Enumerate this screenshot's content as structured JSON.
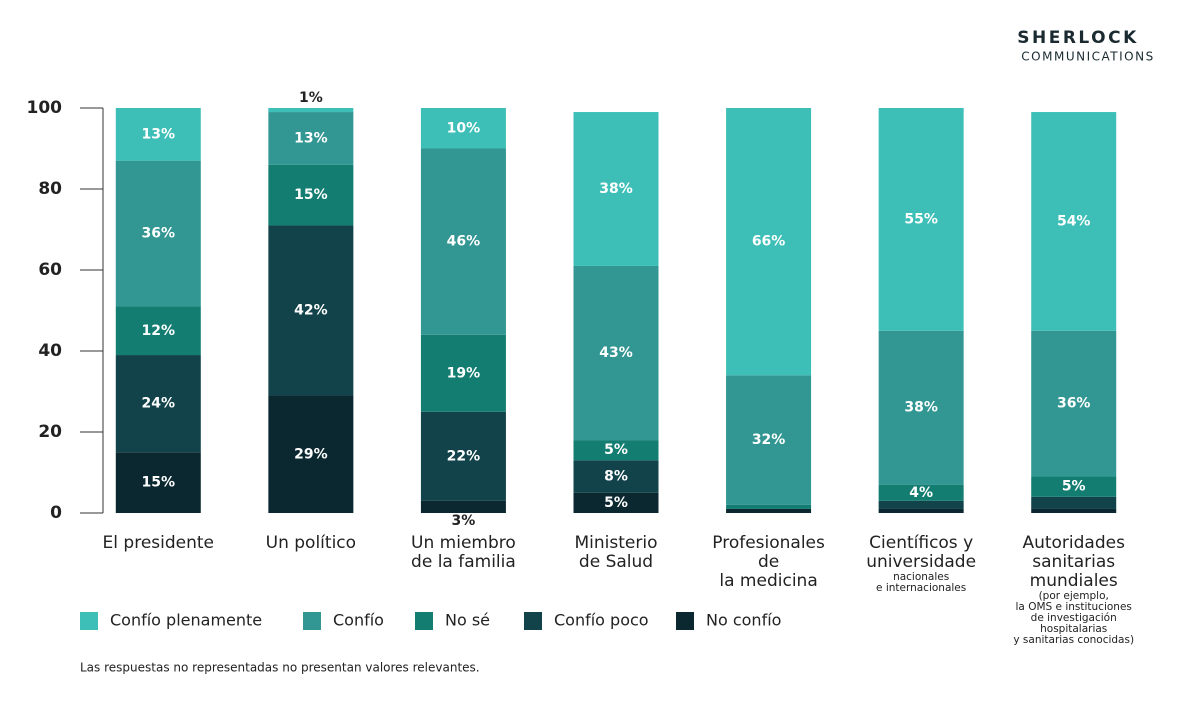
{
  "chart_data": {
    "type": "stacked_bar",
    "categories": [
      "El presidente",
      "Un político",
      "Un miembro de la familia",
      "Ministerio de Salud",
      "Profesionales de la medicina",
      "Científicos y universidade",
      "Autoridades sanitarias mundiales"
    ],
    "category_notes": [
      null,
      null,
      null,
      null,
      null,
      "nacionales e internacionales",
      "(por ejemplo, la OMS e instituciones de investigación hospitalarias y sanitarias conocidas)"
    ],
    "series": [
      {
        "name": "No confío",
        "color": "#0b2830",
        "values": [
          15,
          29,
          3,
          5,
          1,
          1,
          1
        ],
        "value_labels": [
          "15%",
          "29%",
          "3%",
          "5%",
          null,
          null,
          null
        ]
      },
      {
        "name": "Confío poco",
        "color": "#12424a",
        "values": [
          24,
          42,
          22,
          8,
          0,
          2,
          3
        ],
        "value_labels": [
          "24%",
          "42%",
          "22%",
          "8%",
          null,
          null,
          null
        ]
      },
      {
        "name": "No sé",
        "color": "#137d72",
        "values": [
          12,
          15,
          19,
          5,
          1,
          4,
          5
        ],
        "value_labels": [
          "12%",
          "15%",
          "19%",
          "5%",
          null,
          "4%",
          "5%"
        ]
      },
      {
        "name": "Confío",
        "color": "#329693",
        "values": [
          36,
          13,
          46,
          43,
          32,
          38,
          36
        ],
        "value_labels": [
          "36%",
          "13%",
          "46%",
          "43%",
          "32%",
          "38%",
          "36%"
        ]
      },
      {
        "name": "Confío plenamente",
        "color": "#3dbfb8",
        "values": [
          13,
          1,
          10,
          38,
          66,
          55,
          54
        ],
        "value_labels": [
          "13%",
          "1%",
          "10%",
          "38%",
          "66%",
          "55%",
          "54%"
        ]
      }
    ],
    "legend_order": [
      4,
      3,
      2,
      1,
      0
    ],
    "ylim": [
      0,
      100
    ],
    "yticks": [
      0,
      20,
      40,
      60,
      80,
      100
    ],
    "grid": false,
    "note": "Las respuestas no representadas no presentan valores relevantes."
  },
  "logo": {
    "line1": "SHERLOCK",
    "line2": "COMMUNICATIONS"
  }
}
